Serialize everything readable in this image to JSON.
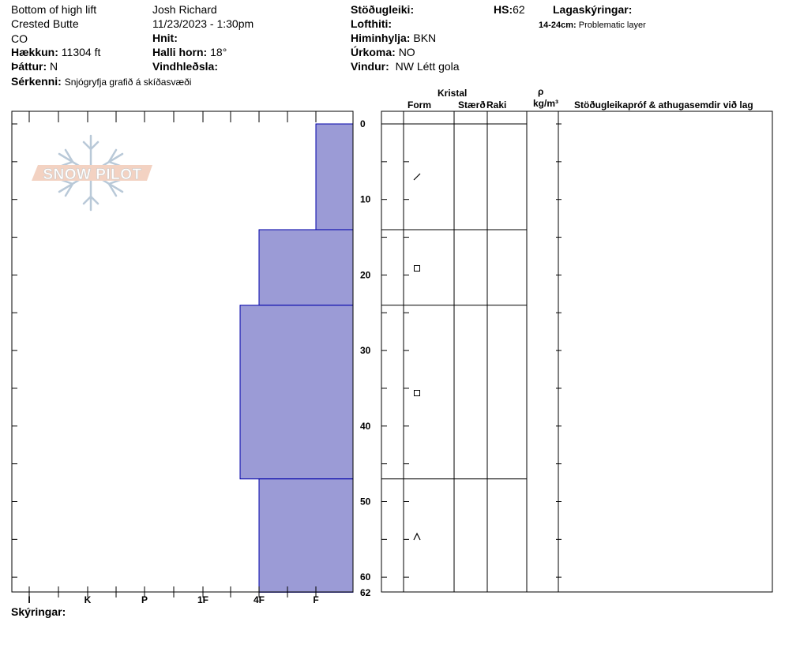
{
  "header": {
    "location_line1": "Bottom of high lift",
    "location_line2": "Crested Butte",
    "location_line3": "CO",
    "observer": "Josh Richard",
    "datetime": "11/23/2023 - 1:30pm",
    "elevation": {
      "label": "Hækkun:",
      "value": "11304 ft"
    },
    "aspect": {
      "label": "Þáttur:",
      "value": "N"
    },
    "coords": {
      "label": "Hnit:",
      "value": ""
    },
    "slope": {
      "label": "Halli horn:",
      "value": "18°"
    },
    "wind_loading": {
      "label": "Vindhleðsla:",
      "value": ""
    },
    "stability": {
      "label": "Stöðugleiki:",
      "value": ""
    },
    "air_temp": {
      "label": "Lofthiti:",
      "value": ""
    },
    "sky": {
      "label": "Himinhylja:",
      "value": "BKN"
    },
    "precip": {
      "label": "Úrkoma:",
      "value": "NO"
    },
    "wind": {
      "label": "Vindur:",
      "value": "NW Létt gola"
    },
    "hs": {
      "label": "HS:",
      "value": "62"
    },
    "layer_notes": {
      "label": "Lagaskýringar:",
      "range": "14-24cm:",
      "note": "Problematic layer"
    },
    "features": {
      "label": "Sérkenni:",
      "value": "Snjógryfja grafið á skíðasvæði"
    }
  },
  "logo": {
    "text": "SNOW PILOT"
  },
  "columns": {
    "crystal": "Kristal",
    "form": "Form",
    "size": "Stærð",
    "moisture": "Raki",
    "rho": "ρ",
    "density_unit": "kg/m³",
    "tests": "Stöðugleikapróf & athugasemdir við lag"
  },
  "footer": {
    "legend_label": "Skýringar:"
  },
  "colors": {
    "hardness_fill": "#9b9bd6",
    "hardness_stroke": "#0000aa",
    "line": "#000000"
  },
  "chart_data": {
    "type": "bar",
    "orientation": "horizontal",
    "title": "",
    "xlabel": "",
    "ylabel": "",
    "x_categories": [
      "I",
      "K",
      "P",
      "1F",
      "4F",
      "F"
    ],
    "depth_ticks": [
      "0",
      "10",
      "20",
      "30",
      "40",
      "50",
      "60",
      "62"
    ],
    "ylim": [
      62,
      0
    ],
    "layers": [
      {
        "top": 0,
        "bottom": 14,
        "hardness": "F",
        "form": "slash"
      },
      {
        "top": 14,
        "bottom": 24,
        "hardness": "4F",
        "form": "square"
      },
      {
        "top": 24,
        "bottom": 47,
        "hardness": "4F+",
        "form": "square"
      },
      {
        "top": 47,
        "bottom": 62,
        "hardness": "4F",
        "form": "caret"
      }
    ]
  }
}
